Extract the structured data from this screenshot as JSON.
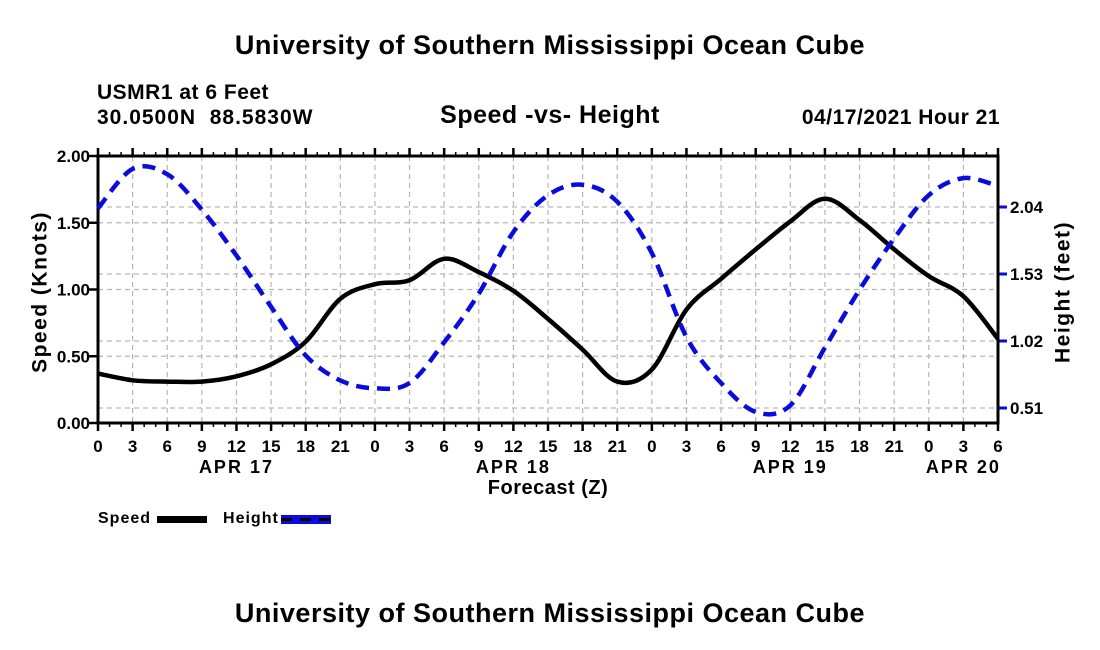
{
  "header": {
    "title": "University of Southern Mississippi Ocean Cube",
    "station": "USMR1 at 6 Feet",
    "coordinates": "30.0500N  88.5830W",
    "chart_title": "Speed -vs- Height",
    "datetime": "04/17/2021 Hour 21"
  },
  "footer": {
    "title": "University of Southern Mississippi Ocean Cube"
  },
  "legend": {
    "items": [
      {
        "label": "Speed",
        "color": "#000000",
        "style": "solid"
      },
      {
        "label": "Height",
        "color": "#0b0bdb",
        "style": "dashed"
      }
    ]
  },
  "colors": {
    "speed_line": "#000000",
    "height_line": "#0b0bdb",
    "grid": "#b6b6b6",
    "axis": "#000000",
    "background": "#ffffff"
  },
  "chart_data": {
    "type": "line",
    "title": "Speed -vs- Height",
    "xlabel": "Forecast (Z)",
    "grid": true,
    "x_axis": {
      "unit": "forecast hour (Z)",
      "range": [
        0,
        78
      ],
      "hours": [
        0,
        3,
        6,
        9,
        12,
        15,
        18,
        21,
        24,
        27,
        30,
        33,
        36,
        39,
        42,
        45,
        48,
        51,
        54,
        57,
        60,
        63,
        66,
        69,
        72,
        75,
        78
      ],
      "tick_labels": [
        "0",
        "3",
        "6",
        "9",
        "12",
        "15",
        "18",
        "21",
        "0",
        "3",
        "6",
        "9",
        "12",
        "15",
        "18",
        "21",
        "0",
        "3",
        "6",
        "9",
        "12",
        "15",
        "18",
        "21",
        "0",
        "3",
        "6"
      ],
      "day_labels": [
        {
          "label": "APR 17",
          "hour": 12
        },
        {
          "label": "APR 18",
          "hour": 36
        },
        {
          "label": "APR 19",
          "hour": 60
        },
        {
          "label": "APR 20",
          "hour": 75
        }
      ],
      "minor_tick_every_hours": 1
    },
    "left_axis": {
      "label": "Speed (Knots)",
      "range": [
        0,
        2
      ],
      "tick_values": [
        0,
        0.5,
        1.0,
        1.5,
        2.0
      ],
      "tick_labels": [
        "0.00",
        "0.50",
        "1.00",
        "1.50",
        "2.00"
      ]
    },
    "right_axis": {
      "label": "Height (feet)",
      "tick_values": [
        0.51,
        1.02,
        1.53,
        2.04
      ],
      "tick_labels": [
        "0.51",
        "1.02",
        "1.53",
        "2.04"
      ]
    },
    "series": [
      {
        "name": "Speed",
        "axis": "left",
        "color": "#000000",
        "line_style": "solid",
        "values": [
          0.37,
          0.32,
          0.31,
          0.31,
          0.35,
          0.44,
          0.61,
          0.93,
          1.04,
          1.07,
          1.23,
          1.13,
          0.99,
          0.78,
          0.55,
          0.31,
          0.4,
          0.85,
          1.08,
          1.3,
          1.51,
          1.68,
          1.52,
          1.3,
          1.1,
          0.95,
          0.63
        ]
      },
      {
        "name": "Height",
        "axis": "right",
        "color": "#0b0bdb",
        "line_style": "dashed",
        "values": [
          2.03,
          2.33,
          2.29,
          2.02,
          1.67,
          1.28,
          0.91,
          0.72,
          0.66,
          0.7,
          1.01,
          1.38,
          1.85,
          2.13,
          2.21,
          2.08,
          1.69,
          1.05,
          0.7,
          0.48,
          0.53,
          0.97,
          1.41,
          1.8,
          2.13,
          2.26,
          2.2
        ]
      }
    ]
  }
}
